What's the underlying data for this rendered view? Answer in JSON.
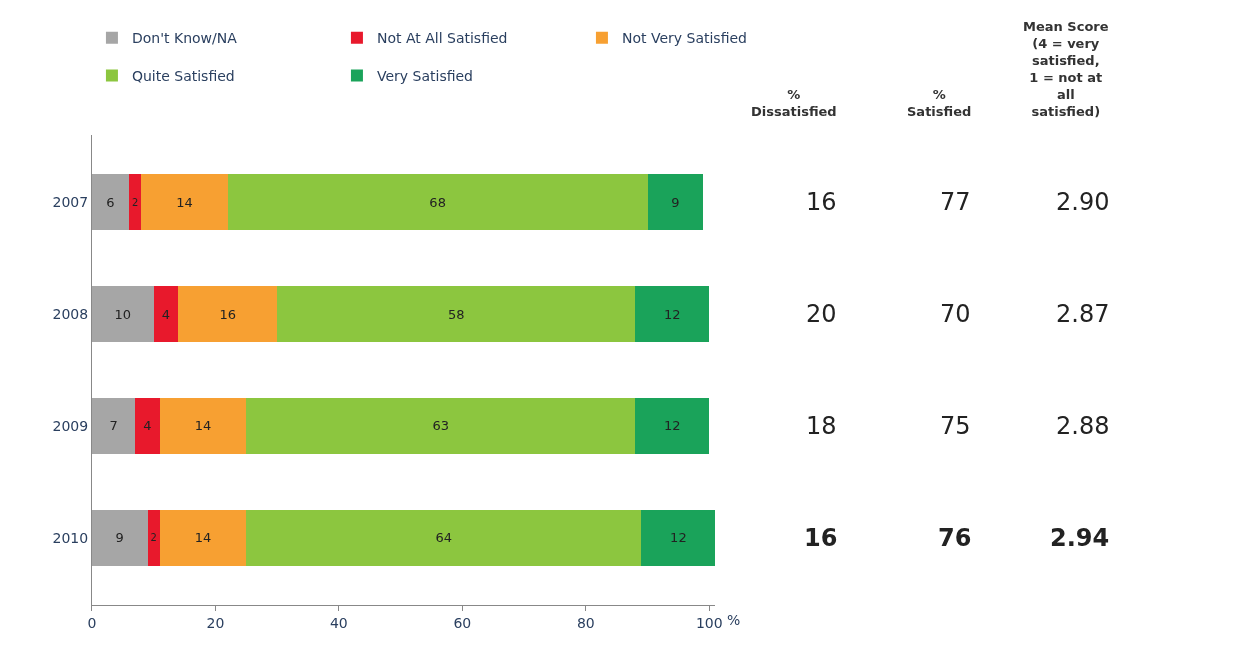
{
  "chart_data": {
    "type": "bar",
    "orientation": "horizontal",
    "stacked": true,
    "data_labels": true,
    "categories": [
      "2007",
      "2008",
      "2009",
      "2010"
    ],
    "series": [
      {
        "name": "Don't Know/NA",
        "color": "#a6a6a6",
        "values": [
          6,
          10,
          7,
          9
        ]
      },
      {
        "name": "Not At All Satisfied",
        "color": "#e8192c",
        "values": [
          2,
          4,
          4,
          2
        ]
      },
      {
        "name": "Not Very Satisfied",
        "color": "#f7a032",
        "values": [
          14,
          16,
          14,
          14
        ]
      },
      {
        "name": "Quite Satisfied",
        "color": "#8cc63f",
        "values": [
          68,
          58,
          63,
          64
        ]
      },
      {
        "name": "Very Satisfied",
        "color": "#1aa35a",
        "values": [
          9,
          12,
          12,
          12
        ]
      }
    ],
    "xlabel": "%",
    "xlim": [
      0,
      101
    ],
    "xticks": [
      0,
      20,
      40,
      60,
      80,
      100
    ],
    "legend": "top left",
    "annotations": [
      "% Dissatisfied",
      "% Satisfied",
      "Mean Score (4 = very satisfied, 1 = not at all satisfied)",
      "16",
      "77",
      "2.90",
      "20",
      "70",
      "2.87",
      "18",
      "75",
      "2.88",
      "16",
      "76",
      "2.94"
    ]
  }
}
